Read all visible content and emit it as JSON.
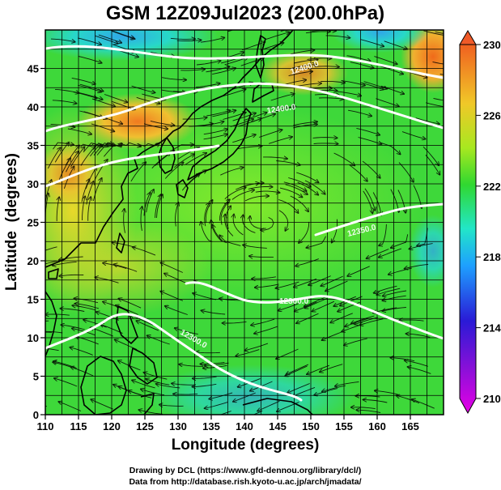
{
  "title": "GSM 12Z09Jul2023 (200.0hPa)",
  "axes": {
    "xlabel": "Longitude (degrees)",
    "ylabel": "Latitude  (degrees)",
    "x_ticks": [
      "110",
      "115",
      "120",
      "125",
      "130",
      "135",
      "140",
      "145",
      "150",
      "155",
      "160",
      "165"
    ],
    "y_ticks": [
      "0",
      "5",
      "10",
      "15",
      "20",
      "25",
      "30",
      "35",
      "40",
      "45"
    ],
    "x_range": [
      110,
      170
    ],
    "y_range": [
      0,
      50
    ]
  },
  "colorbar": {
    "ticks": [
      "210",
      "214",
      "218",
      "222",
      "226",
      "230"
    ],
    "range": [
      210,
      230
    ],
    "colors": [
      "#e600e6",
      "#2a1ad6",
      "#1ea0ff",
      "#22e6c8",
      "#30d830",
      "#a8e820",
      "#f0c828",
      "#f06020"
    ]
  },
  "contour_labels": [
    "12400.0",
    "12400.0",
    "12350.0",
    "12300.0",
    "12300.0"
  ],
  "credits": {
    "line1": "Drawing by DCL (https://www.gfd-dennou.org/library/dcl/)",
    "line2": "Data from http://database.rish.kyoto-u.ac.jp/arch/jmadata/"
  }
}
